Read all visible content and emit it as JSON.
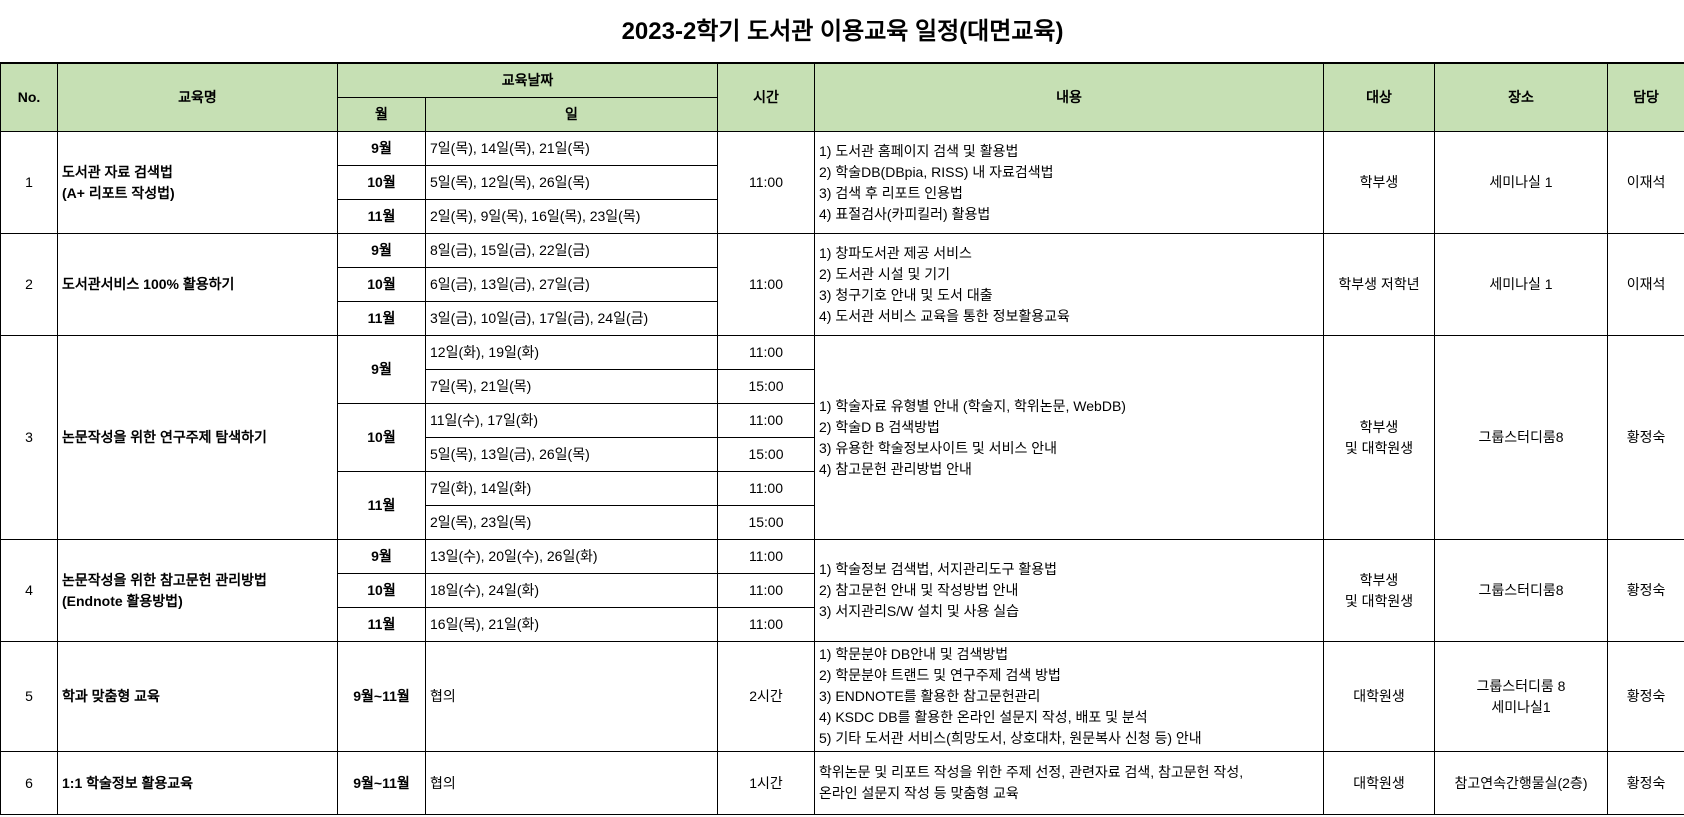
{
  "title": "2023-2학기 도서관 이용교육 일정(대면교육)",
  "headers": {
    "no": "No.",
    "name": "교육명",
    "date": "교육날짜",
    "month": "월",
    "day": "일",
    "time": "시간",
    "content": "내용",
    "target": "대상",
    "place": "장소",
    "manager": "담당"
  },
  "rows": [
    {
      "no": "1",
      "name": "도서관 자료 검색법\n(A+ 리포트 작성법)",
      "dates": [
        {
          "month": "9월",
          "day": "7일(목), 14일(목), 21일(목)"
        },
        {
          "month": "10월",
          "day": "5일(목), 12일(목), 26일(목)"
        },
        {
          "month": "11월",
          "day": "2일(목), 9일(목), 16일(목), 23일(목)"
        }
      ],
      "time": "11:00",
      "content": "1) 도서관 홈페이지 검색 및 활용법\n2) 학술DB(DBpia, RISS) 내 자료검색법\n3) 검색 후 리포트 인용법\n4) 표절검사(카피킬러) 활용법",
      "target": "학부생",
      "place": "세미나실 1",
      "manager": "이재석"
    },
    {
      "no": "2",
      "name": "도서관서비스 100% 활용하기",
      "dates": [
        {
          "month": "9월",
          "day": "8일(금), 15일(금), 22일(금)"
        },
        {
          "month": "10월",
          "day": "6일(금), 13일(금), 27일(금)"
        },
        {
          "month": "11월",
          "day": "3일(금), 10일(금), 17일(금), 24일(금)"
        }
      ],
      "time": "11:00",
      "content": "1) 창파도서관 제공 서비스\n2) 도서관 시설 및 기기\n3) 청구기호 안내 및 도서 대출\n4) 도서관 서비스 교육을 통한 정보활용교육",
      "target": "학부생 저학년",
      "place": "세미나실 1",
      "manager": "이재석"
    },
    {
      "no": "3",
      "name": "논문작성을 위한 연구주제 탐색하기",
      "months": [
        "9월",
        "10월",
        "11월"
      ],
      "slots": [
        {
          "day": "12일(화), 19일(화)",
          "time": "11:00"
        },
        {
          "day": "7일(목), 21일(목)",
          "time": "15:00"
        },
        {
          "day": "11일(수), 17일(화)",
          "time": "11:00"
        },
        {
          "day": "5일(목), 13일(금), 26일(목)",
          "time": "15:00"
        },
        {
          "day": "7일(화), 14일(화)",
          "time": "11:00"
        },
        {
          "day": "2일(목), 23일(목)",
          "time": "15:00"
        }
      ],
      "content": "1) 학술자료 유형별 안내 (학술지, 학위논문, WebDB)\n2) 학술D B 검색방법\n3) 유용한 학술정보사이트 및 서비스 안내\n4) 참고문헌 관리방법 안내",
      "target": "학부생\n및 대학원생",
      "place": "그룹스터디룸8",
      "manager": "황정숙"
    },
    {
      "no": "4",
      "name": "논문작성을 위한 참고문헌 관리방법\n(Endnote 활용방법)",
      "dates": [
        {
          "month": "9월",
          "day": "13일(수), 20일(수), 26일(화)",
          "time": "11:00"
        },
        {
          "month": "10월",
          "day": "18일(수), 24일(화)",
          "time": "11:00"
        },
        {
          "month": "11월",
          "day": "16일(목), 21일(화)",
          "time": "11:00"
        }
      ],
      "content": "1) 학술정보 검색법, 서지관리도구 활용법\n2) 참고문헌 안내 및 작성방법 안내\n3) 서지관리S/W 설치 및 사용 실습",
      "target": "학부생\n및 대학원생",
      "place": "그룹스터디룸8",
      "manager": "황정숙"
    },
    {
      "no": "5",
      "name": "학과 맞춤형 교육",
      "month": "9월~11월",
      "day": "협의",
      "time": "2시간",
      "content": "1) 학문분야 DB안내 및 검색방법\n2) 학문분야 트랜드 및 연구주제 검색 방법\n3) ENDNOTE를 활용한 참고문헌관리\n4) KSDC DB를 활용한 온라인 설문지 작성, 배포 및 분석\n5) 기타 도서관 서비스(희망도서, 상호대차, 원문복사 신청 등) 안내",
      "target": "대학원생",
      "place": "그룹스터디룸 8\n세미나실1",
      "manager": "황정숙"
    },
    {
      "no": "6",
      "name": "1:1 학술정보 활용교육",
      "month": "9월~11월",
      "day": "협의",
      "time": "1시간",
      "content": "학위논문 및 리포트 작성을 위한 주제 선정, 관련자료 검색, 참고문헌 작성,\n온라인 설문지 작성 등 맞춤형 교육",
      "target": "대학원생",
      "place": "참고연속간행물실(2층)",
      "manager": "황정숙"
    }
  ],
  "colors": {
    "header_bg": "#c6e0b4"
  }
}
